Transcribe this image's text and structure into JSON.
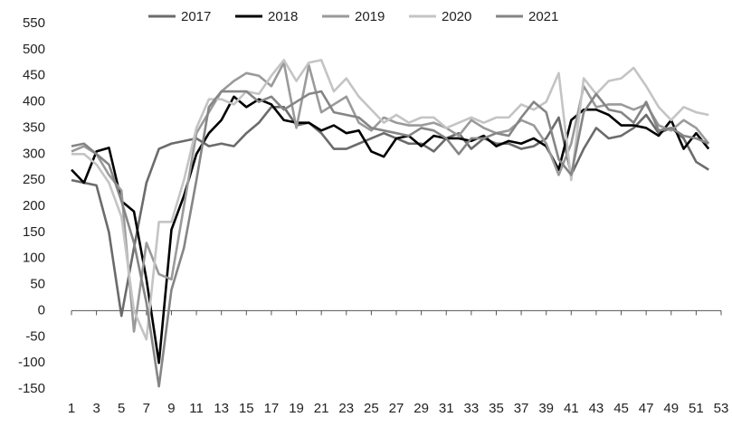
{
  "chart_data": {
    "type": "line",
    "x": [
      1,
      2,
      3,
      4,
      5,
      6,
      7,
      8,
      9,
      10,
      11,
      12,
      13,
      14,
      15,
      16,
      17,
      18,
      19,
      20,
      21,
      22,
      23,
      24,
      25,
      26,
      27,
      28,
      29,
      30,
      31,
      32,
      33,
      34,
      35,
      36,
      37,
      38,
      39,
      40,
      41,
      42,
      43,
      44,
      45,
      46,
      47,
      48,
      49,
      50,
      51,
      52
    ],
    "xlim": [
      1,
      53
    ],
    "xticks": [
      1,
      3,
      5,
      7,
      9,
      11,
      13,
      15,
      17,
      19,
      21,
      23,
      25,
      27,
      29,
      31,
      33,
      35,
      37,
      39,
      41,
      43,
      45,
      47,
      49,
      51,
      53
    ],
    "ylim": [
      -150,
      550
    ],
    "yticks": [
      -150,
      -100,
      -50,
      0,
      50,
      100,
      150,
      200,
      250,
      300,
      350,
      400,
      450,
      500,
      550
    ],
    "legend": "top",
    "series": [
      {
        "name": "2017",
        "color": "#6b6b6b",
        "values": [
          250,
          245,
          240,
          150,
          -10,
          120,
          245,
          310,
          320,
          325,
          330,
          315,
          320,
          315,
          340,
          360,
          390,
          390,
          355,
          360,
          340,
          310,
          310,
          320,
          330,
          340,
          330,
          320,
          320,
          305,
          330,
          340,
          310,
          330,
          320,
          320,
          310,
          315,
          330,
          370,
          260,
          310,
          350,
          330,
          335,
          350,
          375,
          340,
          350,
          330,
          285,
          270
        ]
      },
      {
        "name": "2018",
        "color": "#000000",
        "values": [
          270,
          245,
          305,
          312,
          210,
          190,
          60,
          -100,
          155,
          220,
          300,
          340,
          365,
          410,
          390,
          405,
          395,
          365,
          360,
          360,
          345,
          355,
          340,
          345,
          305,
          295,
          330,
          335,
          315,
          335,
          330,
          330,
          325,
          335,
          315,
          325,
          320,
          330,
          315,
          270,
          365,
          385,
          385,
          375,
          355,
          355,
          350,
          335,
          365,
          310,
          340,
          310
        ]
      },
      {
        "name": "2019",
        "color": "#9a9a9a",
        "values": [
          305,
          315,
          300,
          260,
          230,
          -40,
          130,
          70,
          60,
          200,
          340,
          380,
          420,
          440,
          455,
          450,
          430,
          475,
          350,
          470,
          380,
          395,
          410,
          360,
          345,
          370,
          360,
          355,
          355,
          360,
          350,
          335,
          365,
          350,
          340,
          345,
          365,
          355,
          320,
          260,
          320,
          430,
          390,
          395,
          395,
          385,
          395,
          355,
          345,
          365,
          350,
          320
        ]
      },
      {
        "name": "2020",
        "color": "#c4c4c4",
        "values": [
          300,
          300,
          280,
          245,
          180,
          0,
          -55,
          170,
          170,
          250,
          350,
          405,
          405,
          395,
          420,
          415,
          450,
          480,
          440,
          475,
          480,
          420,
          445,
          410,
          385,
          360,
          375,
          360,
          370,
          370,
          350,
          360,
          370,
          360,
          370,
          370,
          395,
          385,
          400,
          455,
          250,
          445,
          415,
          440,
          445,
          465,
          430,
          390,
          365,
          390,
          380,
          375
        ]
      },
      {
        "name": "2021",
        "color": "#858585",
        "values": [
          315,
          320,
          300,
          280,
          210,
          130,
          15,
          -145,
          40,
          120,
          250,
          390,
          420,
          420,
          420,
          400,
          410,
          385,
          400,
          415,
          420,
          380,
          375,
          370,
          350,
          345,
          340,
          335,
          350,
          345,
          330,
          300,
          330,
          330,
          340,
          335,
          370,
          400,
          380,
          290,
          260,
          380,
          415,
          385,
          380,
          360,
          400,
          345,
          350,
          335,
          330,
          320
        ]
      }
    ]
  }
}
